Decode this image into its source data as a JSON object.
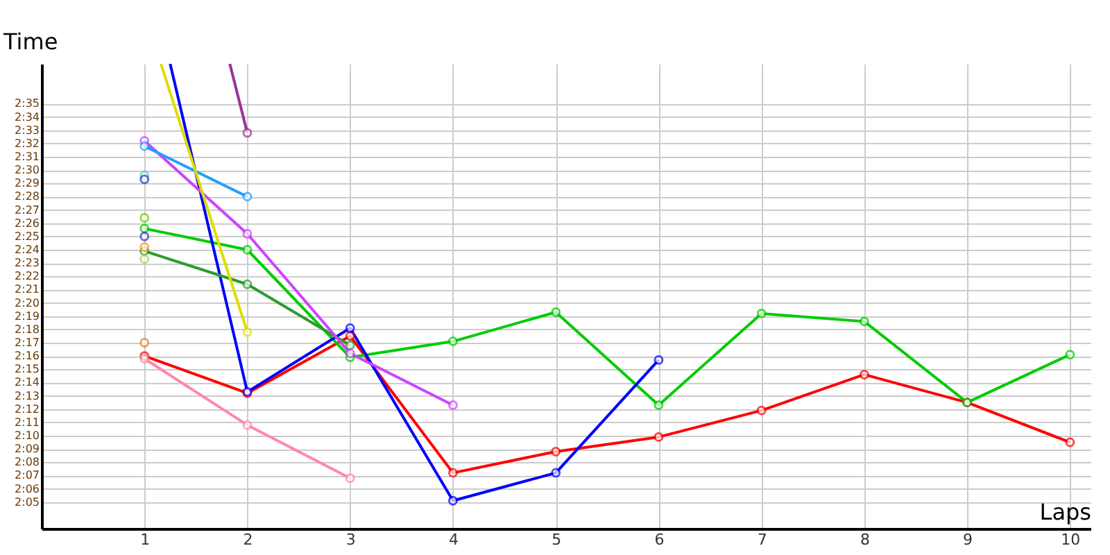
{
  "chart_data": {
    "type": "line",
    "xlabel": "Laps",
    "ylabel": "Time",
    "xlim": [
      0,
      10.2
    ],
    "xticks": [
      {
        "value": 1,
        "label": "1"
      },
      {
        "value": 2,
        "label": "2"
      },
      {
        "value": 3,
        "label": "3"
      },
      {
        "value": 4,
        "label": "4"
      },
      {
        "value": 5,
        "label": "5"
      },
      {
        "value": 6,
        "label": "6"
      },
      {
        "value": 7,
        "label": "7"
      },
      {
        "value": 8,
        "label": "8"
      },
      {
        "value": 9,
        "label": "9"
      },
      {
        "value": 10,
        "label": "10"
      }
    ],
    "ylim": [
      123,
      158
    ],
    "yticks": [
      {
        "value": 125,
        "label": "2:05"
      },
      {
        "value": 126,
        "label": "2:06"
      },
      {
        "value": 127,
        "label": "2:07"
      },
      {
        "value": 128,
        "label": "2:08"
      },
      {
        "value": 129,
        "label": "2:09"
      },
      {
        "value": 130,
        "label": "2:10"
      },
      {
        "value": 131,
        "label": "2:11"
      },
      {
        "value": 132,
        "label": "2:12"
      },
      {
        "value": 133,
        "label": "2:13"
      },
      {
        "value": 134,
        "label": "2:14"
      },
      {
        "value": 135,
        "label": "2:15"
      },
      {
        "value": 136,
        "label": "2:16"
      },
      {
        "value": 137,
        "label": "2:17"
      },
      {
        "value": 138,
        "label": "2:18"
      },
      {
        "value": 139,
        "label": "2:19"
      },
      {
        "value": 140,
        "label": "2:20"
      },
      {
        "value": 141,
        "label": "2:21"
      },
      {
        "value": 142,
        "label": "2:22"
      },
      {
        "value": 143,
        "label": "2:23"
      },
      {
        "value": 144,
        "label": "2:24"
      },
      {
        "value": 145,
        "label": "2:25"
      },
      {
        "value": 146,
        "label": "2:26"
      },
      {
        "value": 147,
        "label": "2:27"
      },
      {
        "value": 148,
        "label": "2:28"
      },
      {
        "value": 149,
        "label": "2:29"
      },
      {
        "value": 150,
        "label": "2:30"
      },
      {
        "value": 151,
        "label": "2:31"
      },
      {
        "value": 152,
        "label": "2:32"
      },
      {
        "value": 153,
        "label": "2:33"
      },
      {
        "value": 154,
        "label": "2:34"
      },
      {
        "value": 155,
        "label": "2:35"
      }
    ],
    "grid": true,
    "legend": false,
    "marker": "circle",
    "line_style": "solid",
    "series": [
      {
        "color": "#ff0000",
        "x": [
          1,
          2,
          3,
          4,
          5,
          6,
          7,
          8,
          9,
          10
        ],
        "values": [
          136.0,
          133.2,
          137.5,
          127.2,
          128.8,
          129.9,
          131.9,
          134.6,
          132.5,
          129.5
        ]
      },
      {
        "color": "#00cc00",
        "x": [
          1,
          2,
          3,
          4,
          5,
          6,
          7,
          8,
          9,
          10
        ],
        "values": [
          145.6,
          144.0,
          135.9,
          137.1,
          139.3,
          132.3,
          139.2,
          138.6,
          132.5,
          136.1
        ]
      },
      {
        "color": "#0000ff",
        "x": [
          1.25,
          2,
          3,
          4,
          5,
          6
        ],
        "values": [
          158,
          133.3,
          138.1,
          125.1,
          127.2,
          135.7
        ]
      },
      {
        "color": "#2e9b2e",
        "x": [
          1,
          2,
          3
        ],
        "values": [
          143.9,
          141.4,
          136.8
        ]
      },
      {
        "color": "#cc44ff",
        "x": [
          1,
          2,
          3,
          4
        ],
        "values": [
          152.2,
          145.2,
          136.2,
          132.3
        ]
      },
      {
        "color": "#1e9fff",
        "x": [
          1,
          2
        ],
        "values": [
          151.8,
          148.0
        ]
      },
      {
        "color": "#dddd00",
        "x": [
          1.16,
          2
        ],
        "values": [
          158,
          137.8
        ]
      },
      {
        "color": "#ff88aa",
        "x": [
          1,
          2,
          3
        ],
        "values": [
          135.8,
          130.8,
          126.8
        ]
      },
      {
        "color": "#993399",
        "x": [
          1.83,
          2
        ],
        "values": [
          158,
          152.8
        ]
      },
      {
        "color": "#40d0d0",
        "x": [
          1
        ],
        "values": [
          149.6
        ]
      },
      {
        "color": "#3030c0",
        "x": [
          1
        ],
        "values": [
          149.3
        ]
      },
      {
        "color": "#66cc00",
        "x": [
          1
        ],
        "values": [
          146.4
        ]
      },
      {
        "color": "#3333cc",
        "x": [
          1
        ],
        "values": [
          145.0
        ]
      },
      {
        "color": "#ff9900",
        "x": [
          1
        ],
        "values": [
          144.2
        ]
      },
      {
        "color": "#b0d060",
        "x": [
          1
        ],
        "values": [
          143.3
        ]
      },
      {
        "color": "#e08020",
        "x": [
          1
        ],
        "values": [
          137.0
        ]
      }
    ]
  }
}
